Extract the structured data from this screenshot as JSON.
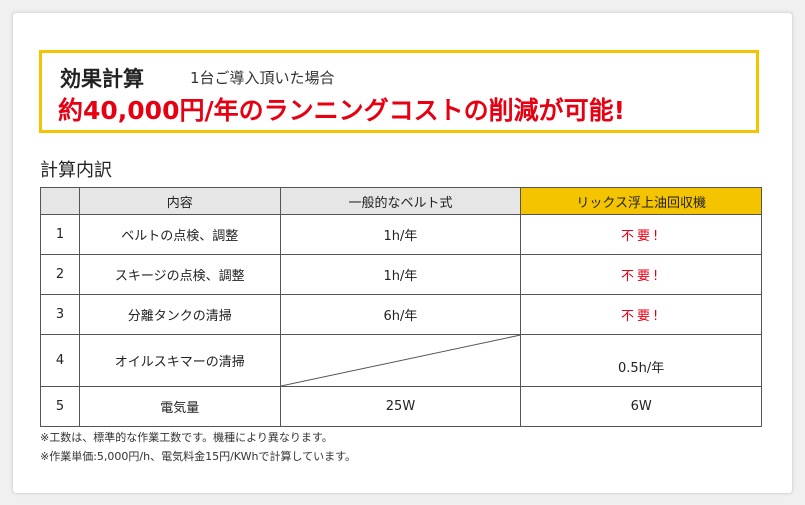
{
  "banner": {
    "title": "効果計算",
    "subtitle": "1台ご導入頂いた場合",
    "headline": "約40,000円/年のランニングコストの削減が可能!"
  },
  "section_title": "計算内訳",
  "table": {
    "headers": [
      "",
      "内容",
      "一般的なベルト式",
      "リックス浮上油回収機"
    ],
    "rows": [
      {
        "no": "1",
        "item": "ベルトの点検、調整",
        "belt": "1h/年",
        "rix": "不要!"
      },
      {
        "no": "2",
        "item": "スキージの点検、調整",
        "belt": "1h/年",
        "rix": "不要!"
      },
      {
        "no": "3",
        "item": "分離タンクの清掃",
        "belt": "6h/年",
        "rix": "不要!"
      },
      {
        "no": "4",
        "item": "オイルスキマーの清掃",
        "belt": "",
        "rix": "0.5h/年"
      },
      {
        "no": "5",
        "item": "電気量",
        "belt": "25W",
        "rix": "6W"
      }
    ]
  },
  "notes": [
    "※工数は、標準的な作業工数です。機種により異なります。",
    "※作業単価:5,000円/h、電気料金15円/KWhで計算しています。"
  ],
  "colors": {
    "accent_yellow": "#f5c400",
    "red": "#e60012"
  }
}
